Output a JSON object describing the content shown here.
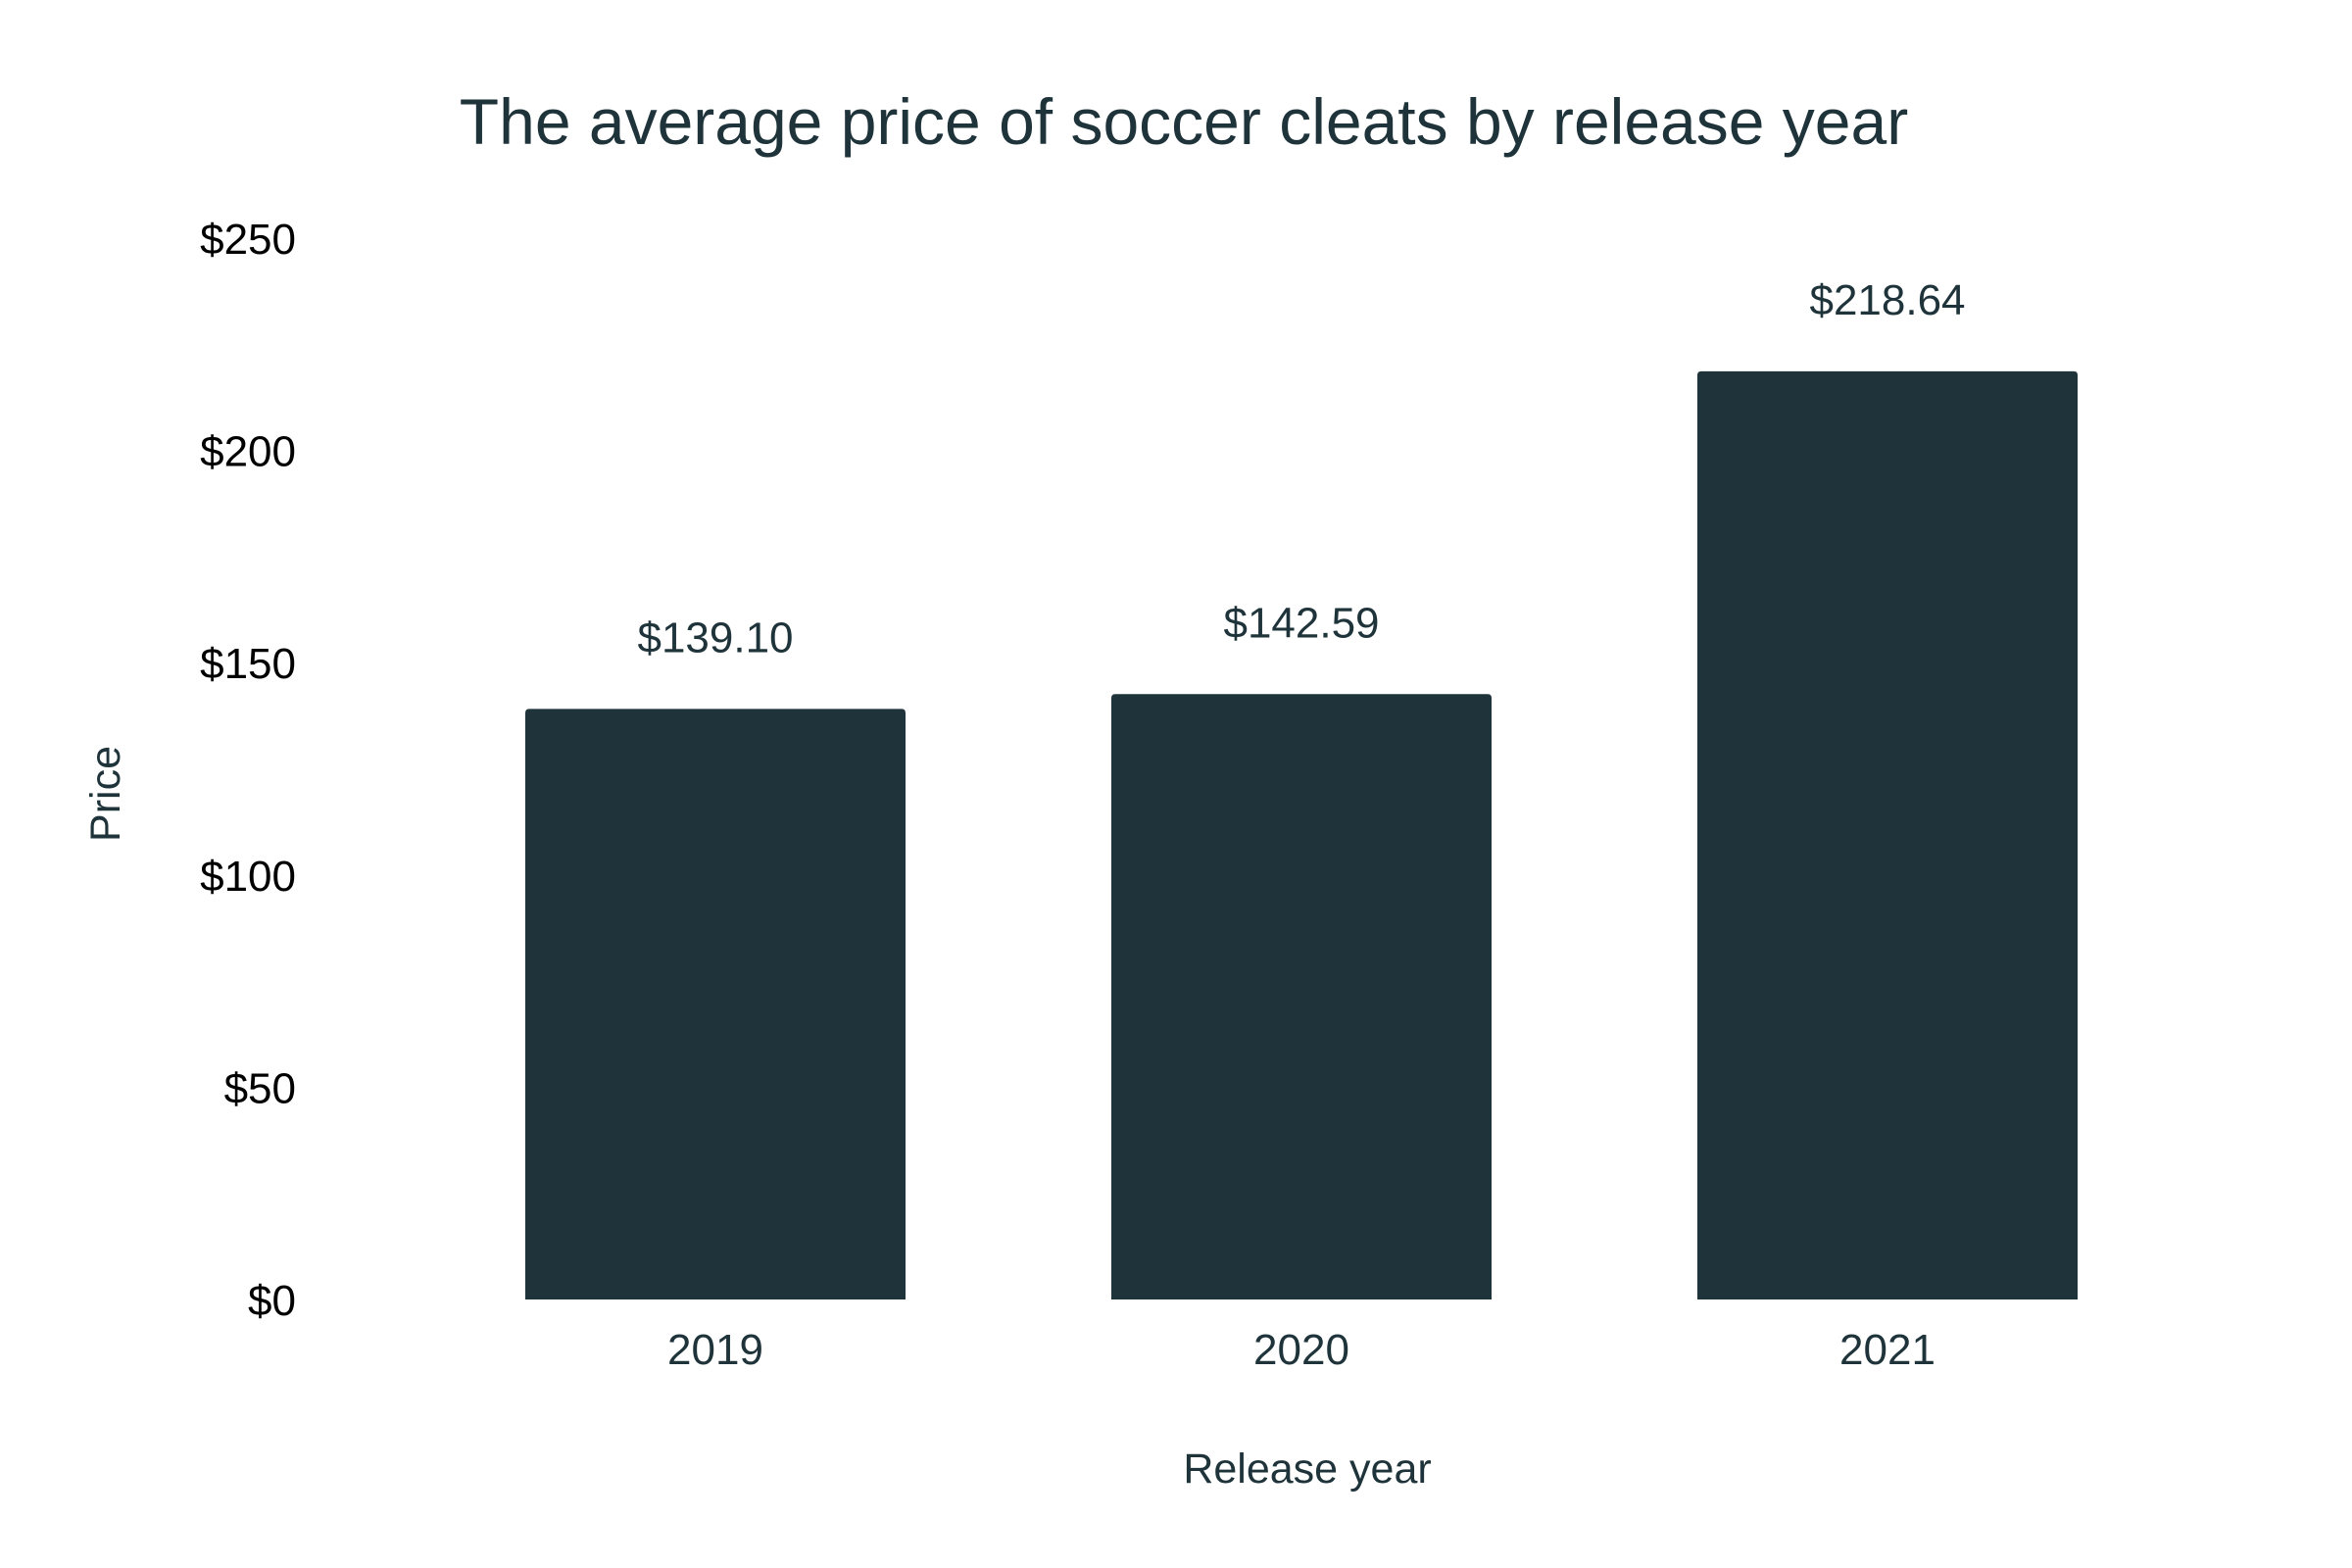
{
  "chart_data": {
    "type": "bar",
    "title": "The average price of soccer cleats by release year",
    "xlabel": "Release year",
    "ylabel": "Price",
    "categories": [
      "2019",
      "2020",
      "2021"
    ],
    "values": [
      139.1,
      142.59,
      218.64
    ],
    "data_labels": [
      "$139.10",
      "$142.59",
      "$218.64"
    ],
    "ylim": [
      0,
      250
    ],
    "yticks": [
      0,
      50,
      100,
      150,
      200,
      250
    ],
    "ytick_labels": [
      "$0",
      "$50",
      "$100",
      "$150",
      "$200",
      "$250"
    ],
    "grid": false,
    "legend": "none",
    "bar_color": "#1e333a"
  }
}
